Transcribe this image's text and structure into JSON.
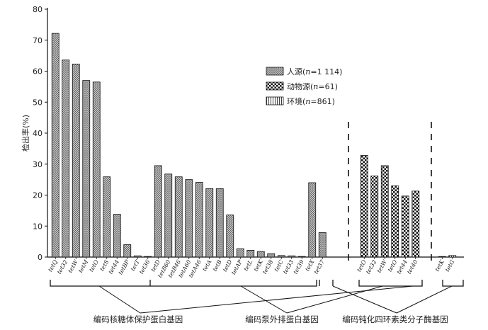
{
  "chart_data": {
    "type": "bar",
    "ylabel": "检出率(%)",
    "ylim": [
      0,
      80
    ],
    "yticks": [
      0,
      10,
      20,
      30,
      40,
      50,
      60,
      70,
      80
    ],
    "grid": false,
    "legend_position": "upper-middle-right",
    "legend": [
      {
        "pattern": "crosshatch",
        "label": "人源(",
        "n_label": "n",
        "value_label": "=1 114)"
      },
      {
        "pattern": "checker",
        "label": "动物源(",
        "n_label": "n",
        "value_label": "=61)"
      },
      {
        "pattern": "vertical",
        "label": "环境(",
        "n_label": "n",
        "value_label": "=861)"
      }
    ],
    "series": [
      {
        "pattern": "crosshatch",
        "categories": [
          "tetQ",
          "tet32",
          "tetW",
          "tetM",
          "tetO",
          "tetS",
          "tet44",
          "tetBP",
          "tetT",
          "tet36",
          "tetD",
          "tetB60",
          "tetB46",
          "tetA60",
          "tetA46",
          "tetA",
          "tetB",
          "tetD",
          "tetAP",
          "tetL",
          "tetK",
          "tet38",
          "tetC",
          "tet33",
          "tet39",
          "tetX",
          "tet37"
        ],
        "values": [
          72.2,
          63.6,
          62.3,
          57.0,
          56.5,
          25.9,
          13.8,
          4.0,
          0.4,
          0.2,
          29.5,
          26.8,
          25.9,
          25.0,
          24.1,
          22.1,
          22.1,
          13.6,
          2.7,
          2.2,
          1.8,
          1.1,
          0.5,
          0.4,
          0.2,
          24.0,
          7.9
        ]
      },
      {
        "pattern": "checker",
        "categories": [
          "tetO",
          "tet32",
          "tetW",
          "tetO",
          "tet44",
          "tet40"
        ],
        "values": [
          32.8,
          26.2,
          29.5,
          23.0,
          19.7,
          21.3
        ]
      },
      {
        "pattern": "vertical",
        "categories": [
          "tetK",
          "tetG"
        ],
        "values": [
          0.1,
          0.5
        ]
      }
    ],
    "groups": [
      {
        "label": "编码核糖体保护蛋白基因"
      },
      {
        "label": "编码泵外排蛋白基因"
      },
      {
        "label": "编码钝化四环素类分子酶基因"
      }
    ]
  }
}
